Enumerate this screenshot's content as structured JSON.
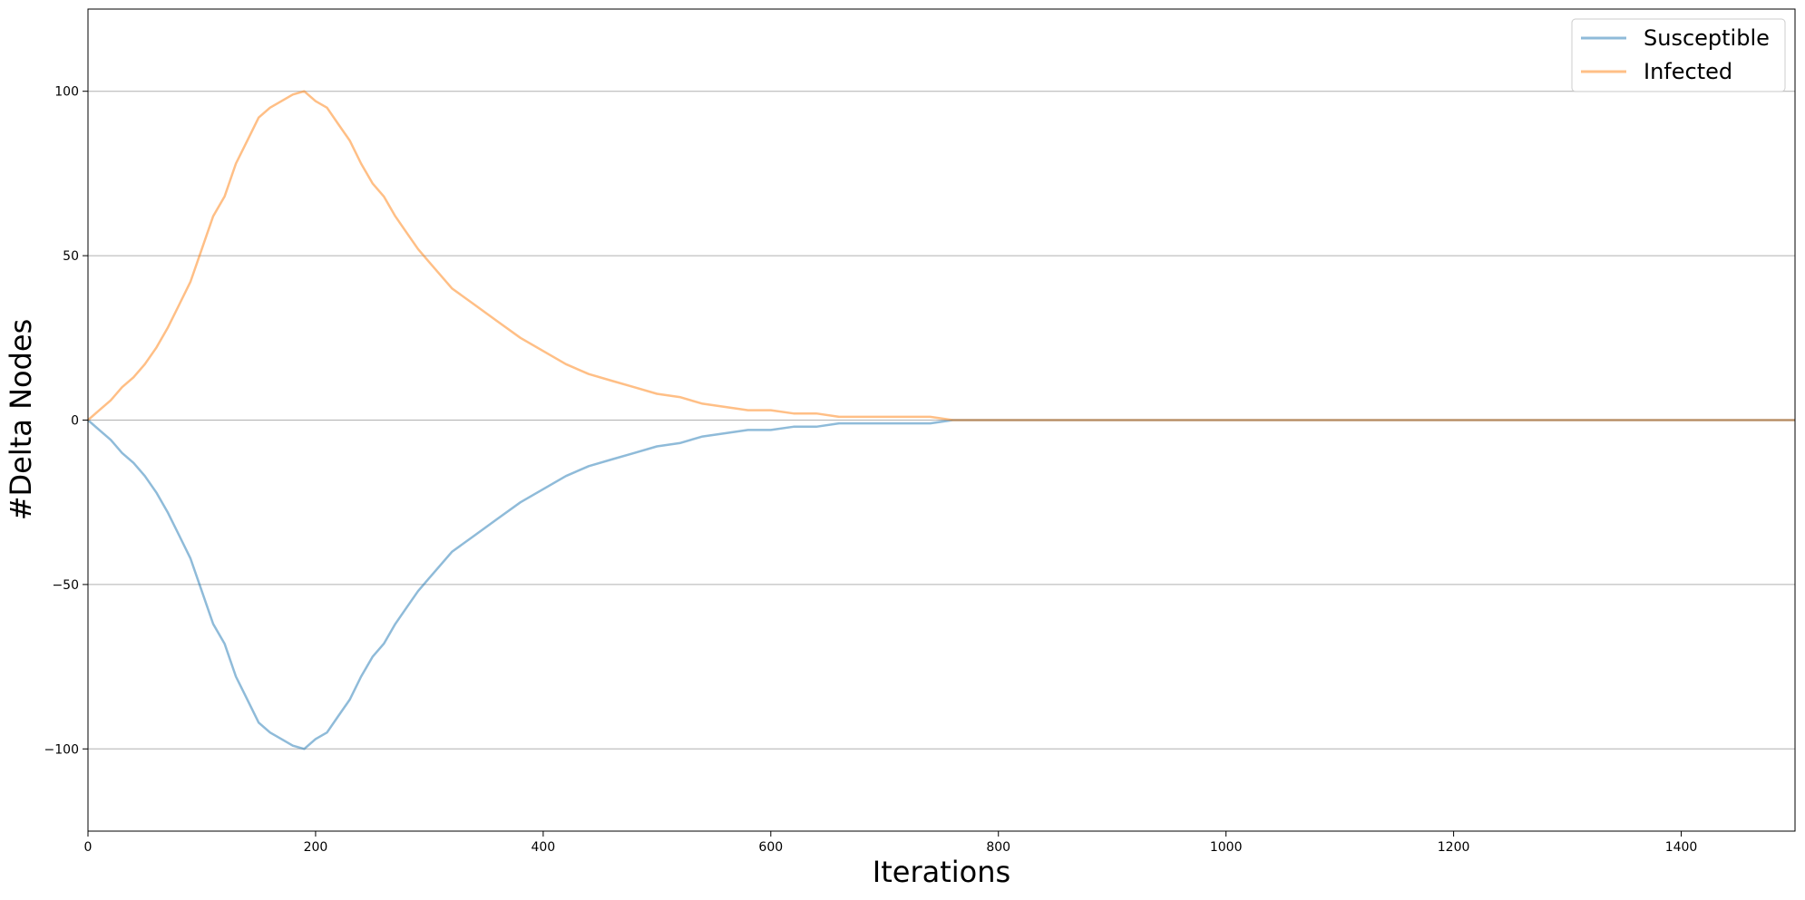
{
  "chart_data": {
    "type": "line",
    "title": "",
    "xlabel": "Iterations",
    "ylabel": "#Delta Nodes",
    "xlim": [
      0,
      1500
    ],
    "ylim": [
      -125,
      125
    ],
    "x_ticks": [
      0,
      200,
      400,
      600,
      800,
      1000,
      1200,
      1400
    ],
    "y_ticks": [
      -100,
      -50,
      0,
      50,
      100
    ],
    "grid": "horizontal",
    "legend_position": "top-right",
    "series": [
      {
        "name": "Susceptible",
        "color": "#1f77b4",
        "opacity": 0.5,
        "x": [
          0,
          10,
          20,
          30,
          40,
          50,
          60,
          70,
          80,
          90,
          100,
          110,
          120,
          130,
          140,
          150,
          160,
          170,
          180,
          190,
          200,
          210,
          220,
          230,
          240,
          250,
          260,
          270,
          280,
          290,
          300,
          320,
          340,
          360,
          380,
          400,
          420,
          440,
          460,
          480,
          500,
          520,
          540,
          560,
          580,
          600,
          620,
          640,
          660,
          680,
          700,
          720,
          740,
          760,
          780,
          800,
          820,
          840,
          860,
          880,
          900,
          950,
          1000,
          1050,
          1100,
          1200,
          1300,
          1400,
          1500
        ],
        "y": [
          0,
          -3,
          -6,
          -10,
          -13,
          -17,
          -22,
          -28,
          -35,
          -42,
          -52,
          -62,
          -68,
          -78,
          -85,
          -92,
          -95,
          -97,
          -99,
          -100,
          -97,
          -95,
          -90,
          -85,
          -78,
          -72,
          -68,
          -62,
          -57,
          -52,
          -48,
          -40,
          -35,
          -30,
          -25,
          -21,
          -17,
          -14,
          -12,
          -10,
          -8,
          -7,
          -5,
          -4,
          -3,
          -3,
          -2,
          -2,
          -1,
          -1,
          -1,
          -1,
          -1,
          0,
          0,
          0,
          0,
          0,
          0,
          0,
          0,
          0,
          0,
          0,
          0,
          0,
          0,
          0,
          0
        ]
      },
      {
        "name": "Infected",
        "color": "#ff7f0e",
        "opacity": 0.5,
        "x": [
          0,
          10,
          20,
          30,
          40,
          50,
          60,
          70,
          80,
          90,
          100,
          110,
          120,
          130,
          140,
          150,
          160,
          170,
          180,
          190,
          200,
          210,
          220,
          230,
          240,
          250,
          260,
          270,
          280,
          290,
          300,
          320,
          340,
          360,
          380,
          400,
          420,
          440,
          460,
          480,
          500,
          520,
          540,
          560,
          580,
          600,
          620,
          640,
          660,
          680,
          700,
          720,
          740,
          760,
          780,
          800,
          820,
          840,
          860,
          880,
          900,
          950,
          1000,
          1050,
          1100,
          1200,
          1300,
          1400,
          1500
        ],
        "y": [
          0,
          3,
          6,
          10,
          13,
          17,
          22,
          28,
          35,
          42,
          52,
          62,
          68,
          78,
          85,
          92,
          95,
          97,
          99,
          100,
          97,
          95,
          90,
          85,
          78,
          72,
          68,
          62,
          57,
          52,
          48,
          40,
          35,
          30,
          25,
          21,
          17,
          14,
          12,
          10,
          8,
          7,
          5,
          4,
          3,
          3,
          2,
          2,
          1,
          1,
          1,
          1,
          1,
          0,
          0,
          0,
          0,
          0,
          0,
          0,
          0,
          0,
          0,
          0,
          0,
          0,
          0,
          0,
          0
        ]
      }
    ]
  }
}
